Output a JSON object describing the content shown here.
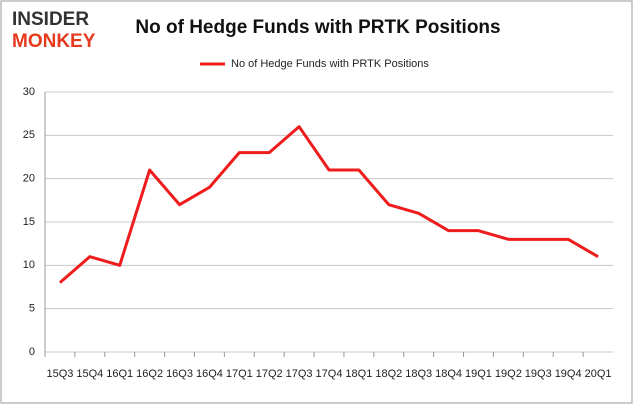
{
  "chart_data": {
    "type": "line",
    "title": "No of Hedge Funds with PRTK Positions",
    "logo_top": "INSIDER",
    "logo_bottom": "MONKEY",
    "categories": [
      "15Q3",
      "15Q4",
      "16Q1",
      "16Q2",
      "16Q3",
      "16Q4",
      "17Q1",
      "17Q2",
      "17Q3",
      "17Q4",
      "18Q1",
      "18Q2",
      "18Q3",
      "18Q4",
      "19Q1",
      "19Q2",
      "19Q3",
      "19Q4",
      "20Q1"
    ],
    "series": [
      {
        "name": "No of Hedge Funds with PRTK Positions",
        "color": "#ee1c1c",
        "values": [
          8,
          11,
          10,
          21,
          17,
          19,
          23,
          23,
          26,
          21,
          21,
          17,
          16,
          14,
          14,
          13,
          13,
          13,
          11
        ]
      }
    ],
    "ylim": [
      0,
      30
    ],
    "yticks": [
      0,
      5,
      10,
      15,
      20,
      25,
      30
    ],
    "grid": true,
    "legend": "top"
  }
}
